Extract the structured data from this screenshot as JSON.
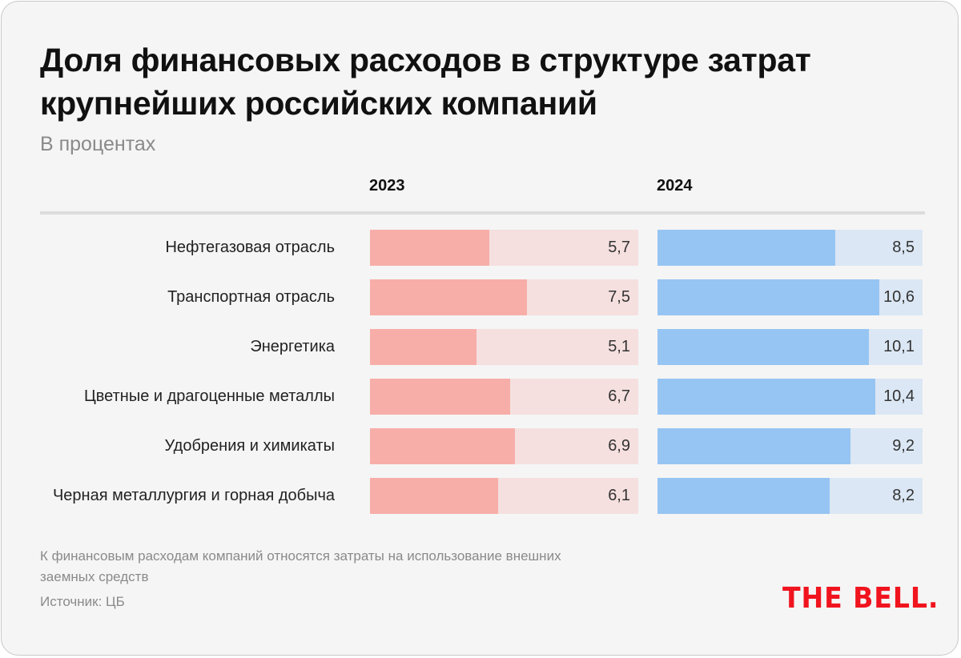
{
  "title": "Доля финансовых расходов в структуре затрат крупнейших российских компаний",
  "subtitle": "В процентах",
  "note": "К финансовым расходам компаний относятся затраты на использование внешних заемных средств",
  "source": "Источник: ЦБ",
  "logo": "THE BELL.",
  "colors": {
    "series_2023_fill": "#f7aea8",
    "series_2023_track": "#f5e0df",
    "series_2024_fill": "#96c5f3",
    "series_2024_track": "#dbe7f4",
    "logo": "#f0141e"
  },
  "chart_data": {
    "type": "bar",
    "orientation": "horizontal",
    "title": "Доля финансовых расходов в структуре затрат крупнейших российских компаний",
    "subtitle": "В процентах",
    "xlabel": "",
    "ylabel": "",
    "xlim": [
      0,
      12.8
    ],
    "grid": false,
    "categories": [
      "Нефтегазовая отрасль",
      "Транспортная отрасль",
      "Энергетика",
      "Цветные и драгоценные металлы",
      "Удобрения и химикаты",
      "Черная металлургия и горная добыча"
    ],
    "series": [
      {
        "name": "2023",
        "values": [
          5.7,
          7.5,
          5.1,
          6.7,
          6.9,
          6.1
        ],
        "labels": [
          "5,7",
          "7,5",
          "5,1",
          "6,7",
          "6,9",
          "6,1"
        ]
      },
      {
        "name": "2024",
        "values": [
          8.5,
          10.6,
          10.1,
          10.4,
          9.2,
          8.2
        ],
        "labels": [
          "8,5",
          "10,6",
          "10,1",
          "10,4",
          "9,2",
          "8,2"
        ]
      }
    ]
  }
}
